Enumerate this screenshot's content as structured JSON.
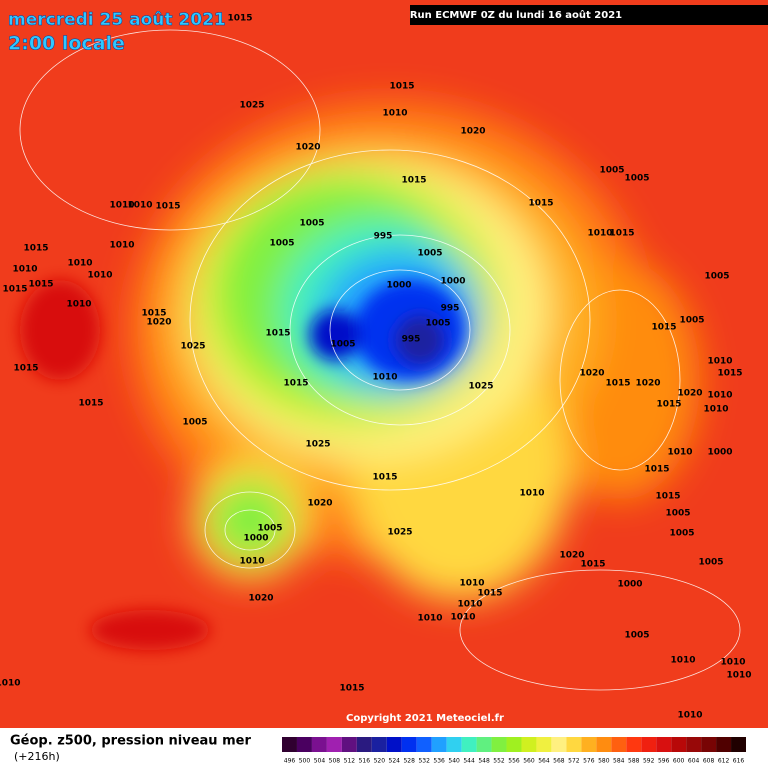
{
  "header": {
    "date": "mercredi 25 août 2021",
    "time": "2:00 locale",
    "run": "Run ECMWF 0Z du lundi 16 août 2021"
  },
  "isobar_labels": [
    "1015",
    "1025",
    "1015",
    "1010",
    "1020",
    "1020",
    "1015",
    "1005",
    "1005",
    "1015",
    "1010",
    "1010",
    "1015",
    "1005",
    "1005",
    "995",
    "1005",
    "1015",
    "1010",
    "1010",
    "1015",
    "1010",
    "1010",
    "1010",
    "1000",
    "1000",
    "1015",
    "1015",
    "1005",
    "1015",
    "1010",
    "1020",
    "995",
    "1005",
    "1015",
    "1005",
    "1015",
    "1025",
    "1005",
    "995",
    "1010",
    "1015",
    "1015",
    "1020",
    "1015",
    "1020",
    "1010",
    "1015",
    "1025",
    "1020",
    "1015",
    "1010",
    "1015",
    "1010",
    "1005",
    "1025",
    "1010",
    "1000",
    "1015",
    "1015",
    "1010",
    "1015",
    "1020",
    "1005",
    "1005",
    "1000",
    "1005",
    "1025",
    "1020",
    "1010",
    "1015",
    "1005",
    "1010",
    "1015",
    "1000",
    "1020",
    "1010",
    "1010",
    "1010",
    "1005",
    "1010",
    "1010",
    "1010",
    "1010",
    "1015",
    "1010"
  ],
  "footer": {
    "copyright": "Copyright 2021 Meteociel.fr",
    "legend_title": "Géop. z500, pression niveau mer",
    "lead_time": "(+216h)"
  },
  "colorbar": {
    "values": [
      496,
      500,
      504,
      508,
      512,
      516,
      520,
      524,
      528,
      532,
      536,
      540,
      544,
      548,
      552,
      556,
      560,
      564,
      568,
      572,
      576,
      580,
      584,
      588,
      592,
      596,
      600,
      604,
      608,
      612,
      616
    ],
    "colors": [
      "#300030",
      "#4a0060",
      "#7a1090",
      "#a020b0",
      "#601080",
      "#2a1a80",
      "#1a20a0",
      "#0010c8",
      "#0030f0",
      "#1060ff",
      "#20a0ff",
      "#30d0f0",
      "#40f0c0",
      "#60f080",
      "#80f040",
      "#a0f020",
      "#d0f020",
      "#f0f040",
      "#fff080",
      "#ffd840",
      "#ffb020",
      "#ff8c10",
      "#ff6010",
      "#ff3810",
      "#f02010",
      "#d81010",
      "#b80808",
      "#980808",
      "#780404",
      "#500000",
      "#200000"
    ]
  }
}
